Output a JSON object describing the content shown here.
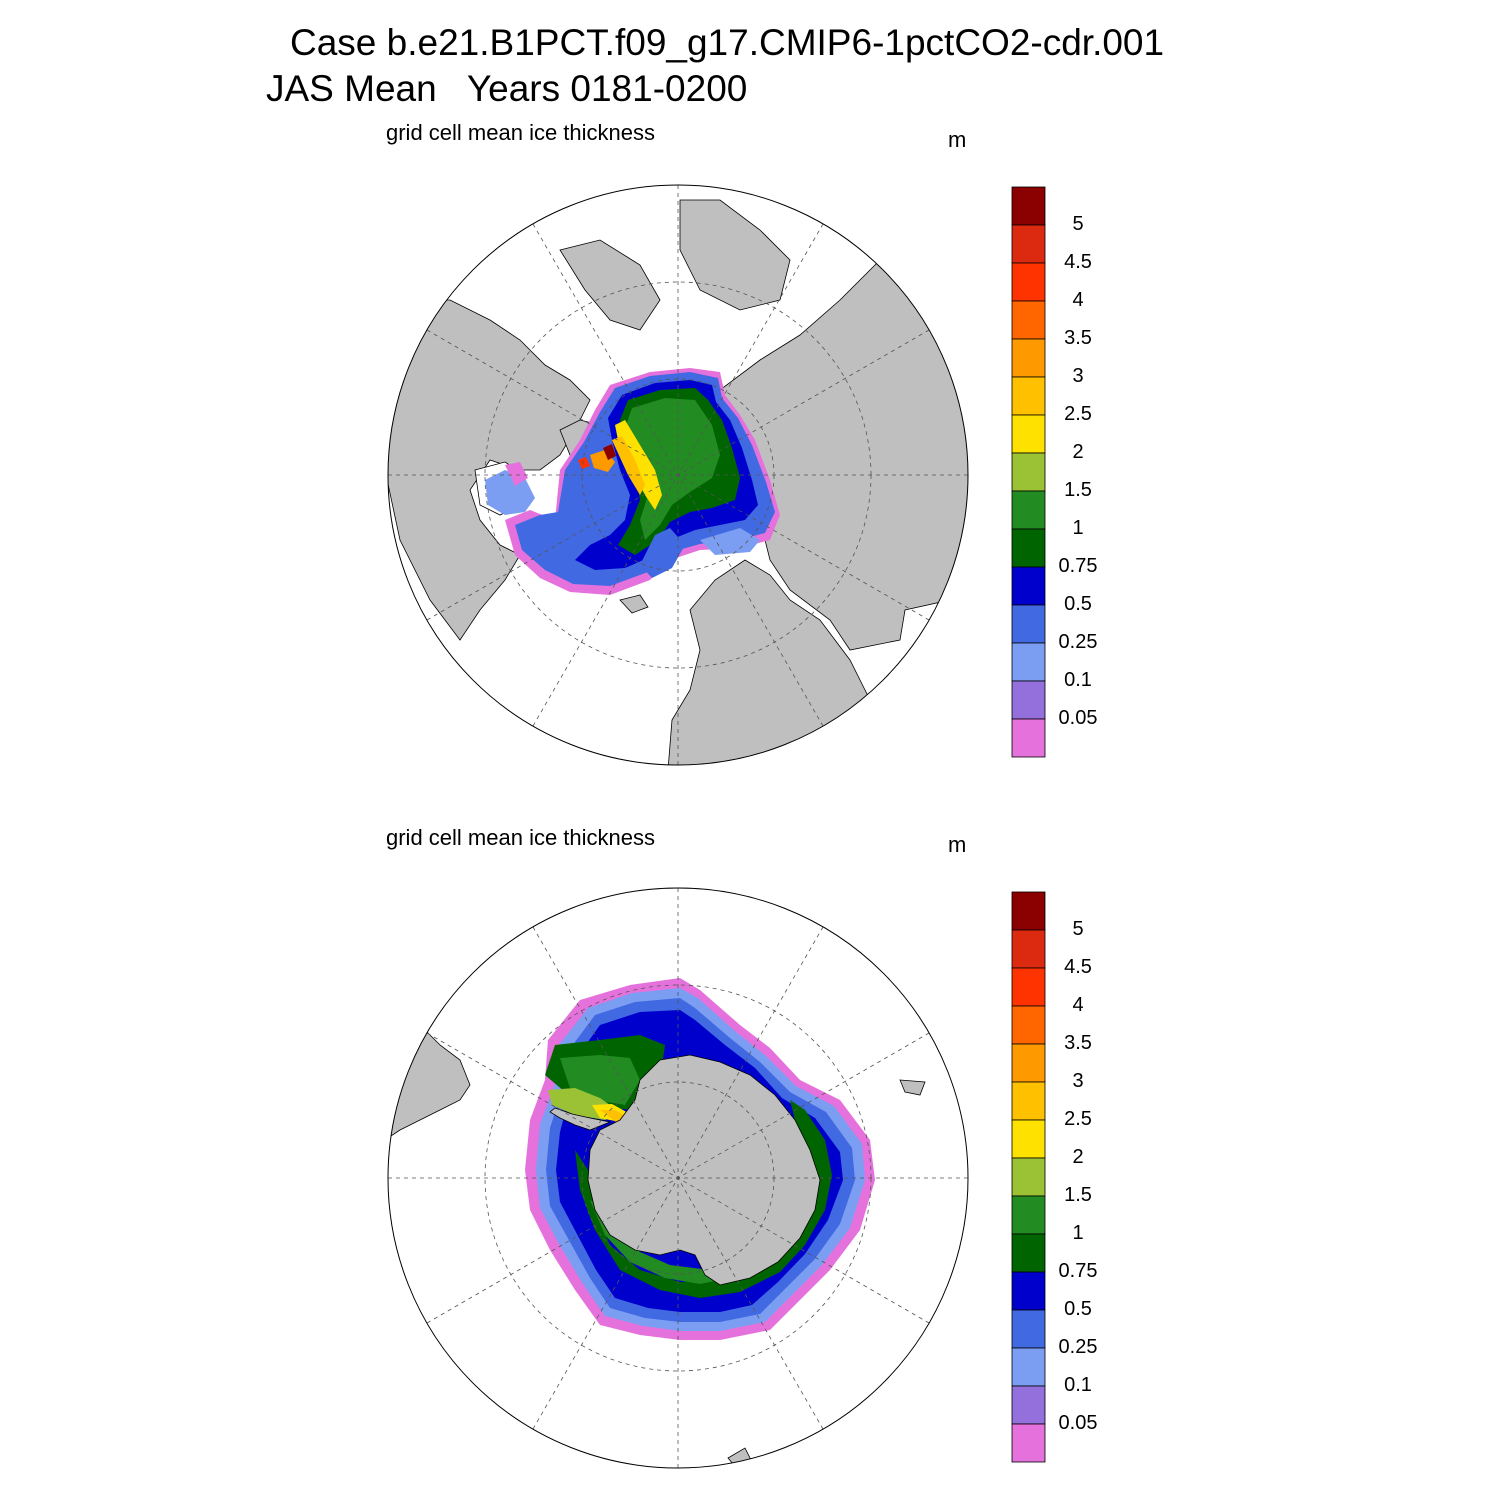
{
  "header": {
    "title_line1": "Case b.e21.B1PCT.f09_g17.CMIP6-1pctCO2-cdr.001",
    "title_line2": "JAS Mean   Years 0181-0200"
  },
  "panels": [
    {
      "id": "north",
      "hemisphere": "Northern Hemisphere (polar stereographic)",
      "variable_label": "grid cell mean ice thickness",
      "units": "m"
    },
    {
      "id": "south",
      "hemisphere": "Southern Hemisphere (polar stereographic)",
      "variable_label": "grid cell mean ice thickness",
      "units": "m"
    }
  ],
  "colorbar": {
    "levels": [
      "5",
      "4.5",
      "4",
      "3.5",
      "3",
      "2.5",
      "2",
      "1.5",
      "1",
      "0.75",
      "0.5",
      "0.25",
      "0.1",
      "0.05"
    ],
    "colors": [
      "#8b0000",
      "#dc2a10",
      "#ff3300",
      "#ff6600",
      "#ff9900",
      "#ffc000",
      "#ffe100",
      "#9bc234",
      "#228b22",
      "#006400",
      "#0000cd",
      "#4169e1",
      "#7b9ef2",
      "#9370db",
      "#e572dc"
    ]
  },
  "map_style": {
    "land_color": "#bfbfbf",
    "ocean_color": "#ffffff",
    "graticule_style": "dashed"
  }
}
